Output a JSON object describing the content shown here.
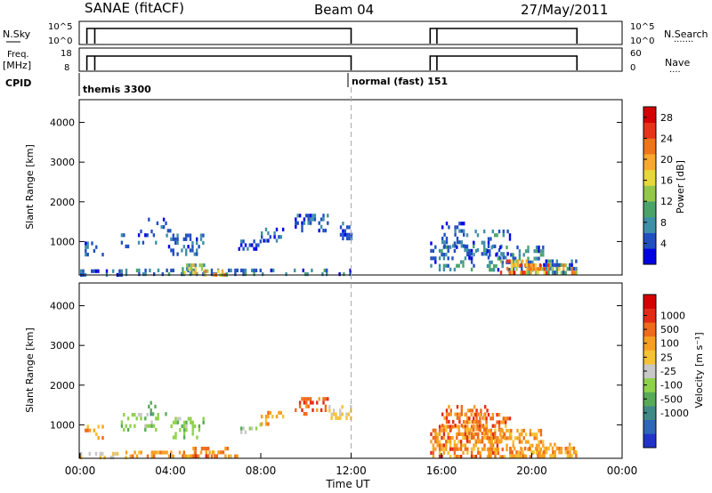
{
  "header": {
    "station": "SANAE (fitACF)",
    "beam": "Beam 04",
    "date": "27/May/2011"
  },
  "params": {
    "nsky_label": "N.Sky",
    "nsearch_label": "N.Search",
    "freq_label_1": "Freq.",
    "freq_label_2": "[MHz]",
    "nave_label": "Nave",
    "cpid_label": "CPID",
    "left_ticks_top": [
      "10^5",
      "10^0"
    ],
    "right_ticks_top": [
      "10^5",
      "10^0"
    ],
    "left_ticks_bottom": [
      "18",
      "8"
    ],
    "right_ticks_bottom": [
      "60",
      "0"
    ],
    "cpid_segments": [
      {
        "start_hour": 0,
        "label": "themis 3300"
      },
      {
        "start_hour": 12,
        "label": "normal (fast) 151"
      }
    ],
    "on_intervals": [
      [
        0.3,
        12.0
      ],
      [
        15.5,
        22.0
      ]
    ],
    "gap_marker_hours": [
      0.65,
      15.8
    ]
  },
  "time_axis": {
    "label": "Time UT",
    "range_hours": [
      0,
      24
    ],
    "ticks": [
      "00:00",
      "04:00",
      "08:00",
      "12:00",
      "16:00",
      "20:00",
      "00:00"
    ],
    "mode_change_hour": 12
  },
  "chart_data": [
    {
      "type": "heatmap",
      "name": "power",
      "ylabel": "Slant Range [km]",
      "ylim": [
        180,
        4550
      ],
      "yticks": [
        "1000",
        "2000",
        "3000",
        "4000"
      ],
      "colorbar_label": "Power [dB]",
      "colorbar_ticks": [
        "4",
        "8",
        "12",
        "16",
        "20",
        "24",
        "28"
      ],
      "colorbar_range": [
        0,
        30
      ],
      "colorbar_colors": [
        "#0000e6",
        "#1f4fc0",
        "#3f8fa8",
        "#4aa46a",
        "#93c74a",
        "#e7d83a",
        "#f8a82c",
        "#f07418",
        "#e8321a",
        "#d60000"
      ],
      "regions": [
        {
          "t": [
            0.0,
            1.8
          ],
          "r": [
            180,
            300
          ],
          "v": [
            2,
            8
          ],
          "d": 0.35
        },
        {
          "t": [
            0.2,
            1.0
          ],
          "r": [
            700,
            1000
          ],
          "v": [
            2,
            8
          ],
          "d": 0.25
        },
        {
          "t": [
            1.8,
            3.5
          ],
          "r": [
            900,
            1300
          ],
          "v": [
            2,
            8
          ],
          "d": 0.25
        },
        {
          "t": [
            3.0,
            4.0
          ],
          "r": [
            1300,
            1600
          ],
          "v": [
            2,
            7
          ],
          "d": 0.2
        },
        {
          "t": [
            2.0,
            7.0
          ],
          "r": [
            180,
            320
          ],
          "v": [
            3,
            10
          ],
          "d": 0.35
        },
        {
          "t": [
            3.8,
            5.5
          ],
          "r": [
            700,
            1200
          ],
          "v": [
            2,
            9
          ],
          "d": 0.3
        },
        {
          "t": [
            4.5,
            5.5
          ],
          "r": [
            180,
            450
          ],
          "v": [
            6,
            20
          ],
          "d": 0.45
        },
        {
          "t": [
            5.5,
            6.5
          ],
          "r": [
            180,
            300
          ],
          "v": [
            10,
            24
          ],
          "d": 0.5
        },
        {
          "t": [
            7.0,
            8.0
          ],
          "r": [
            850,
            1050
          ],
          "v": [
            2,
            8
          ],
          "d": 0.3
        },
        {
          "t": [
            8.0,
            9.0
          ],
          "r": [
            1050,
            1350
          ],
          "v": [
            2,
            8
          ],
          "d": 0.3
        },
        {
          "t": [
            9.5,
            11.0
          ],
          "r": [
            1300,
            1700
          ],
          "v": [
            2,
            8
          ],
          "d": 0.35
        },
        {
          "t": [
            11.5,
            12.0
          ],
          "r": [
            1050,
            1500
          ],
          "v": [
            2,
            8
          ],
          "d": 0.5
        },
        {
          "t": [
            7.0,
            12.0
          ],
          "r": [
            180,
            320
          ],
          "v": [
            2,
            10
          ],
          "d": 0.25
        },
        {
          "t": [
            15.5,
            17.5
          ],
          "r": [
            300,
            1000
          ],
          "v": [
            2,
            10
          ],
          "d": 0.35
        },
        {
          "t": [
            16.0,
            17.0
          ],
          "r": [
            900,
            1500
          ],
          "v": [
            2,
            8
          ],
          "d": 0.3
        },
        {
          "t": [
            17.0,
            19.0
          ],
          "r": [
            550,
            1300
          ],
          "v": [
            2,
            10
          ],
          "d": 0.3
        },
        {
          "t": [
            18.0,
            20.5
          ],
          "r": [
            300,
            900
          ],
          "v": [
            2,
            12
          ],
          "d": 0.35
        },
        {
          "t": [
            19.0,
            22.0
          ],
          "r": [
            180,
            450
          ],
          "v": [
            10,
            28
          ],
          "d": 0.6
        },
        {
          "t": [
            18.5,
            20.0
          ],
          "r": [
            180,
            550
          ],
          "v": [
            12,
            26
          ],
          "d": 0.45
        },
        {
          "t": [
            20.5,
            22.0
          ],
          "r": [
            250,
            550
          ],
          "v": [
            2,
            12
          ],
          "d": 0.35
        }
      ]
    },
    {
      "type": "heatmap",
      "name": "velocity",
      "ylabel": "Slant Range [km]",
      "ylim": [
        180,
        4550
      ],
      "yticks": [
        "1000",
        "2000",
        "3000",
        "4000"
      ],
      "colorbar_label": "Velocity [m s⁻¹]",
      "colorbar_ticks": [
        "1000",
        "500",
        "100",
        "25",
        "-25",
        "-100",
        "-500",
        "-1000"
      ],
      "colorbar_colors": [
        "#2233cc",
        "#2e67b7",
        "#3f8a86",
        "#57ab58",
        "#8fd14b",
        "#c8c8c8",
        "#f6c232",
        "#f7a020",
        "#ef6a1a",
        "#e42a15",
        "#d60000"
      ],
      "regions": [
        {
          "t": [
            0.0,
            2.0
          ],
          "r": [
            180,
            320
          ],
          "v": [
            5,
            6
          ],
          "d": 0.3
        },
        {
          "t": [
            0.2,
            1.0
          ],
          "r": [
            700,
            1000
          ],
          "v": [
            6,
            8
          ],
          "d": 0.3
        },
        {
          "t": [
            1.8,
            3.5
          ],
          "r": [
            900,
            1300
          ],
          "v": [
            3,
            5
          ],
          "d": 0.25
        },
        {
          "t": [
            3.0,
            4.0
          ],
          "r": [
            1300,
            1600
          ],
          "v": [
            2,
            4
          ],
          "d": 0.2
        },
        {
          "t": [
            2.0,
            7.0
          ],
          "r": [
            180,
            350
          ],
          "v": [
            6,
            8
          ],
          "d": 0.35
        },
        {
          "t": [
            4.0,
            5.5
          ],
          "r": [
            700,
            1200
          ],
          "v": [
            3,
            5
          ],
          "d": 0.3
        },
        {
          "t": [
            4.5,
            6.5
          ],
          "r": [
            180,
            450
          ],
          "v": [
            7,
            9
          ],
          "d": 0.45
        },
        {
          "t": [
            7.0,
            8.0
          ],
          "r": [
            850,
            1050
          ],
          "v": [
            3,
            5
          ],
          "d": 0.3
        },
        {
          "t": [
            8.0,
            9.0
          ],
          "r": [
            1050,
            1350
          ],
          "v": [
            6,
            8
          ],
          "d": 0.3
        },
        {
          "t": [
            9.5,
            11.0
          ],
          "r": [
            1300,
            1700
          ],
          "v": [
            7,
            9
          ],
          "d": 0.35
        },
        {
          "t": [
            11.0,
            12.0
          ],
          "r": [
            1200,
            1500
          ],
          "v": [
            5,
            6
          ],
          "d": 0.45
        },
        {
          "t": [
            15.5,
            18.5
          ],
          "r": [
            200,
            1000
          ],
          "v": [
            6,
            9
          ],
          "d": 0.55
        },
        {
          "t": [
            16.0,
            18.0
          ],
          "r": [
            900,
            1500
          ],
          "v": [
            7,
            9
          ],
          "d": 0.35
        },
        {
          "t": [
            17.0,
            19.0
          ],
          "r": [
            550,
            1300
          ],
          "v": [
            6,
            9
          ],
          "d": 0.35
        },
        {
          "t": [
            18.0,
            20.5
          ],
          "r": [
            200,
            900
          ],
          "v": [
            6,
            8
          ],
          "d": 0.45
        },
        {
          "t": [
            19.0,
            22.0
          ],
          "r": [
            180,
            450
          ],
          "v": [
            6,
            8
          ],
          "d": 0.6
        },
        {
          "t": [
            20.5,
            22.0
          ],
          "r": [
            250,
            550
          ],
          "v": [
            6,
            8
          ],
          "d": 0.35
        }
      ]
    }
  ]
}
